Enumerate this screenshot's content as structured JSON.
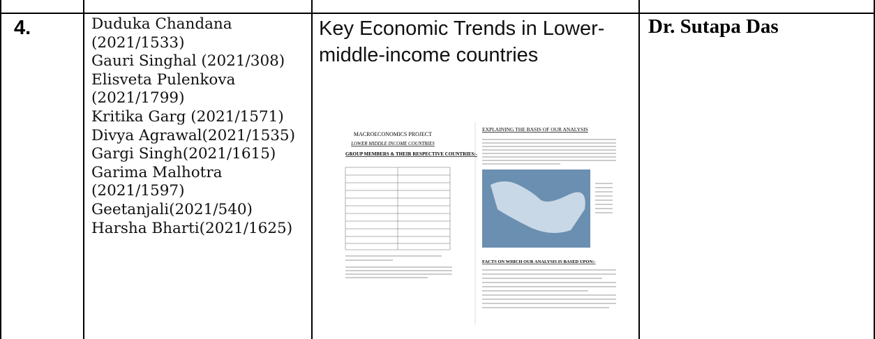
{
  "row": {
    "number": "4.",
    "members": [
      "Duduka Chandana (2021/1533)",
      "Gauri Singhal (2021/308)",
      "Elisveta Pulenkova (2021/1799)",
      "Kritika Garg (2021/1571)",
      "Divya Agrawal(2021/1535)",
      "Gargi Singh(2021/1615)",
      "Garima Malhotra (2021/1597)",
      "Geetanjali(2021/540)",
      "Harsha Bharti(2021/1625)"
    ],
    "topic": "Key Economic Trends in Lower-middle-income countries",
    "thumbnail": {
      "page1": {
        "title": "MACROECONOMICS  PROJECT",
        "subtitle": "LOWER MIDDLE INCOME COUNTRIES",
        "heading": "GROUP MEMBERS & THEIR RESPECTIVE COUNTRIES:-"
      },
      "page2": {
        "heading": "EXPLAINING THE BASIS OF OUR ANALYSIS",
        "heading2": "FACTS ON WHICH OUR ANALYSIS IS BASED UPON:-"
      }
    },
    "mentor": "Dr. Sutapa Das"
  }
}
